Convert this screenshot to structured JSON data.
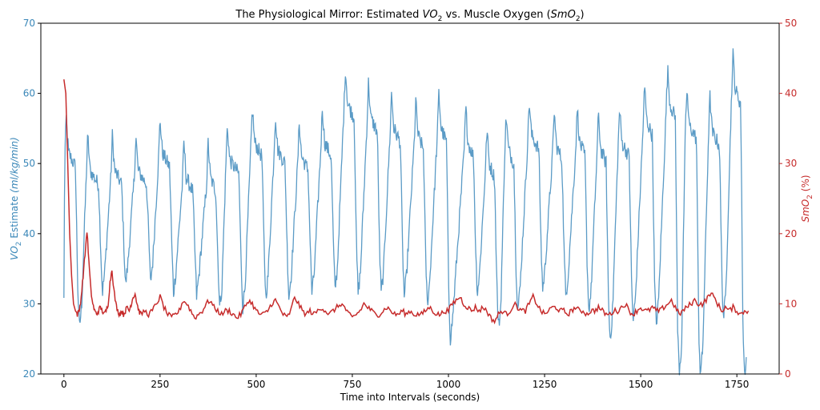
{
  "chart_data": {
    "type": "line",
    "title": "The Physiological Mirror: Estimated VO2 vs. Muscle Oxygen (SmO2)",
    "title_parts": {
      "prefix": "The Physiological Mirror: Estimated ",
      "vo2": "VO",
      "vo2_sub": "2",
      "mid": " vs. Muscle Oxygen (",
      "smo2": "SmO",
      "smo2_sub": "2",
      "suffix": ")"
    },
    "xlabel": "Time into Intervals (seconds)",
    "ylabel_left": {
      "main": "VO",
      "sub": "2",
      "rest": " Estimate ",
      "unit": "(ml/kg/min)"
    },
    "ylabel_right": {
      "main": "SmO",
      "sub": "2",
      "rest": " (%)"
    },
    "xlim": [
      -60,
      1860
    ],
    "ylim_left": [
      20,
      70
    ],
    "ylim_right": [
      0,
      50
    ],
    "xticks": [
      0,
      250,
      500,
      750,
      1000,
      1250,
      1500,
      1750
    ],
    "yticks_left": [
      20,
      30,
      40,
      50,
      60,
      70
    ],
    "yticks_right": [
      0,
      10,
      20,
      30,
      40,
      50
    ],
    "grid": false,
    "colors": {
      "vo2": "#5b9bc6",
      "smo2": "#c62b2b",
      "left_axis": "#3a87b8",
      "right_axis": "#c62b2b"
    },
    "series": [
      {
        "axis": "left",
        "peaks": [
          {
            "t": 6,
            "v": 56.5
          },
          {
            "t": 62,
            "v": 54
          },
          {
            "t": 126,
            "v": 54
          },
          {
            "t": 187,
            "v": 54
          },
          {
            "t": 250,
            "v": 56.5
          },
          {
            "t": 312,
            "v": 53
          },
          {
            "t": 375,
            "v": 53
          },
          {
            "t": 425,
            "v": 55.5
          },
          {
            "t": 490,
            "v": 58
          },
          {
            "t": 550,
            "v": 57
          },
          {
            "t": 612,
            "v": 56
          },
          {
            "t": 672,
            "v": 58
          },
          {
            "t": 732,
            "v": 63.5
          },
          {
            "t": 792,
            "v": 61.5
          },
          {
            "t": 852,
            "v": 60
          },
          {
            "t": 915,
            "v": 59
          },
          {
            "t": 975,
            "v": 60
          },
          {
            "t": 1045,
            "v": 58
          },
          {
            "t": 1100,
            "v": 55
          },
          {
            "t": 1150,
            "v": 57
          },
          {
            "t": 1210,
            "v": 59
          },
          {
            "t": 1275,
            "v": 57.5
          },
          {
            "t": 1335,
            "v": 58
          },
          {
            "t": 1390,
            "v": 57
          },
          {
            "t": 1445,
            "v": 58
          },
          {
            "t": 1510,
            "v": 61
          },
          {
            "t": 1570,
            "v": 63.5
          },
          {
            "t": 1620,
            "v": 60.5
          },
          {
            "t": 1680,
            "v": 59.5
          },
          {
            "t": 1740,
            "v": 65.5
          }
        ],
        "troughs": [
          {
            "t": 40,
            "v": 26.5
          },
          {
            "t": 100,
            "v": 31.5
          },
          {
            "t": 160,
            "v": 32.5
          },
          {
            "t": 225,
            "v": 33
          },
          {
            "t": 285,
            "v": 31.5
          },
          {
            "t": 345,
            "v": 31
          },
          {
            "t": 405,
            "v": 29.5
          },
          {
            "t": 465,
            "v": 29.5
          },
          {
            "t": 525,
            "v": 31
          },
          {
            "t": 585,
            "v": 31
          },
          {
            "t": 645,
            "v": 31.5
          },
          {
            "t": 705,
            "v": 32
          },
          {
            "t": 765,
            "v": 31.5
          },
          {
            "t": 825,
            "v": 31.5
          },
          {
            "t": 885,
            "v": 31
          },
          {
            "t": 945,
            "v": 30
          },
          {
            "t": 1005,
            "v": 25
          },
          {
            "t": 1075,
            "v": 31.5
          },
          {
            "t": 1130,
            "v": 26.5
          },
          {
            "t": 1180,
            "v": 29
          },
          {
            "t": 1245,
            "v": 32
          },
          {
            "t": 1305,
            "v": 31
          },
          {
            "t": 1365,
            "v": 29
          },
          {
            "t": 1420,
            "v": 25
          },
          {
            "t": 1480,
            "v": 27.5
          },
          {
            "t": 1540,
            "v": 27
          },
          {
            "t": 1600,
            "v": 20.5
          },
          {
            "t": 1655,
            "v": 20
          },
          {
            "t": 1715,
            "v": 28
          },
          {
            "t": 1770,
            "v": 20
          }
        ]
      },
      {
        "axis": "right",
        "points": [
          [
            0,
            42
          ],
          [
            5,
            40
          ],
          [
            10,
            30
          ],
          [
            15,
            20
          ],
          [
            20,
            14
          ],
          [
            25,
            10
          ],
          [
            30,
            9
          ],
          [
            35,
            8.5
          ],
          [
            40,
            9
          ],
          [
            45,
            11
          ],
          [
            50,
            14
          ],
          [
            55,
            17
          ],
          [
            60,
            20.5
          ],
          [
            65,
            16
          ],
          [
            70,
            12
          ],
          [
            75,
            10
          ],
          [
            80,
            9
          ],
          [
            85,
            8.5
          ],
          [
            90,
            9
          ],
          [
            95,
            9.5
          ],
          [
            100,
            9
          ],
          [
            105,
            8.5
          ],
          [
            110,
            9
          ],
          [
            115,
            10
          ],
          [
            120,
            13
          ],
          [
            125,
            15
          ],
          [
            130,
            12
          ],
          [
            135,
            10
          ],
          [
            140,
            9
          ],
          [
            145,
            8.5
          ],
          [
            150,
            9
          ],
          [
            155,
            8.5
          ],
          [
            160,
            9
          ],
          [
            165,
            9.5
          ],
          [
            170,
            9
          ],
          [
            175,
            10
          ],
          [
            180,
            11
          ],
          [
            185,
            11.5
          ],
          [
            190,
            10
          ],
          [
            195,
            9
          ],
          [
            200,
            8.5
          ],
          [
            210,
            9
          ],
          [
            220,
            8.5
          ],
          [
            230,
            9
          ],
          [
            240,
            10
          ],
          [
            250,
            11
          ],
          [
            260,
            9.5
          ],
          [
            270,
            8.5
          ],
          [
            280,
            8
          ],
          [
            290,
            8.5
          ],
          [
            300,
            9
          ],
          [
            310,
            10.5
          ],
          [
            320,
            10
          ],
          [
            330,
            9
          ],
          [
            340,
            8
          ],
          [
            350,
            8.5
          ],
          [
            360,
            9
          ],
          [
            370,
            10
          ],
          [
            380,
            10.5
          ],
          [
            390,
            9.5
          ],
          [
            400,
            9
          ],
          [
            410,
            8.5
          ],
          [
            420,
            9
          ],
          [
            430,
            9
          ],
          [
            440,
            8.5
          ],
          [
            450,
            8
          ],
          [
            460,
            8.5
          ],
          [
            470,
            9.5
          ],
          [
            480,
            10.5
          ],
          [
            490,
            10
          ],
          [
            500,
            9
          ],
          [
            510,
            8.5
          ],
          [
            520,
            8.5
          ],
          [
            530,
            9
          ],
          [
            540,
            10
          ],
          [
            550,
            10.5
          ],
          [
            560,
            9.5
          ],
          [
            570,
            8.5
          ],
          [
            580,
            8
          ],
          [
            590,
            9
          ],
          [
            600,
            11
          ],
          [
            610,
            10
          ],
          [
            620,
            9
          ],
          [
            630,
            8.5
          ],
          [
            640,
            9
          ],
          [
            650,
            8.5
          ],
          [
            660,
            9
          ],
          [
            670,
            9.5
          ],
          [
            680,
            9
          ],
          [
            690,
            8.5
          ],
          [
            700,
            9
          ],
          [
            710,
            9.5
          ],
          [
            720,
            10
          ],
          [
            730,
            9.5
          ],
          [
            740,
            8.5
          ],
          [
            750,
            8
          ],
          [
            760,
            8.5
          ],
          [
            770,
            9
          ],
          [
            780,
            10
          ],
          [
            790,
            9.5
          ],
          [
            800,
            9
          ],
          [
            810,
            8.5
          ],
          [
            820,
            8.5
          ],
          [
            830,
            9
          ],
          [
            840,
            9.5
          ],
          [
            850,
            9
          ],
          [
            860,
            8.5
          ],
          [
            870,
            8.5
          ],
          [
            880,
            9
          ],
          [
            890,
            8.5
          ],
          [
            900,
            9
          ],
          [
            910,
            8.5
          ],
          [
            920,
            8.5
          ],
          [
            930,
            8.5
          ],
          [
            940,
            9
          ],
          [
            950,
            9.5
          ],
          [
            960,
            9
          ],
          [
            970,
            8.5
          ],
          [
            980,
            8.5
          ],
          [
            990,
            9
          ],
          [
            1000,
            9
          ],
          [
            1010,
            10
          ],
          [
            1020,
            10.5
          ],
          [
            1030,
            11
          ],
          [
            1040,
            10
          ],
          [
            1050,
            9.5
          ],
          [
            1060,
            9
          ],
          [
            1070,
            9.5
          ],
          [
            1080,
            9
          ],
          [
            1090,
            9.5
          ],
          [
            1100,
            9
          ],
          [
            1110,
            8
          ],
          [
            1120,
            7.5
          ],
          [
            1130,
            8.5
          ],
          [
            1140,
            9
          ],
          [
            1150,
            8.5
          ],
          [
            1160,
            9
          ],
          [
            1170,
            10
          ],
          [
            1180,
            9.5
          ],
          [
            1190,
            9
          ],
          [
            1200,
            9
          ],
          [
            1210,
            10
          ],
          [
            1220,
            11
          ],
          [
            1230,
            10
          ],
          [
            1240,
            9
          ],
          [
            1250,
            8.5
          ],
          [
            1260,
            9
          ],
          [
            1270,
            9.5
          ],
          [
            1280,
            9.5
          ],
          [
            1290,
            9
          ],
          [
            1300,
            9
          ],
          [
            1310,
            8.5
          ],
          [
            1320,
            9
          ],
          [
            1330,
            9.5
          ],
          [
            1340,
            9
          ],
          [
            1350,
            9
          ],
          [
            1360,
            8.5
          ],
          [
            1370,
            9
          ],
          [
            1380,
            9
          ],
          [
            1390,
            9.5
          ],
          [
            1400,
            9
          ],
          [
            1410,
            8.5
          ],
          [
            1420,
            8.5
          ],
          [
            1430,
            9
          ],
          [
            1440,
            9
          ],
          [
            1450,
            9.5
          ],
          [
            1460,
            10
          ],
          [
            1470,
            9
          ],
          [
            1480,
            8.5
          ],
          [
            1490,
            9
          ],
          [
            1500,
            9.5
          ],
          [
            1510,
            9
          ],
          [
            1520,
            9
          ],
          [
            1530,
            9.5
          ],
          [
            1540,
            9
          ],
          [
            1550,
            9
          ],
          [
            1560,
            9.5
          ],
          [
            1570,
            10
          ],
          [
            1580,
            10.5
          ],
          [
            1590,
            9.5
          ],
          [
            1600,
            8.5
          ],
          [
            1610,
            9
          ],
          [
            1620,
            9.5
          ],
          [
            1630,
            10
          ],
          [
            1640,
            10.5
          ],
          [
            1650,
            10
          ],
          [
            1660,
            10
          ],
          [
            1670,
            10.5
          ],
          [
            1680,
            11.5
          ],
          [
            1690,
            11
          ],
          [
            1700,
            10
          ],
          [
            1710,
            9
          ],
          [
            1720,
            9.5
          ],
          [
            1730,
            9
          ],
          [
            1740,
            9.5
          ],
          [
            1750,
            9
          ],
          [
            1760,
            8.5
          ],
          [
            1770,
            9
          ],
          [
            1780,
            9
          ]
        ]
      }
    ]
  }
}
